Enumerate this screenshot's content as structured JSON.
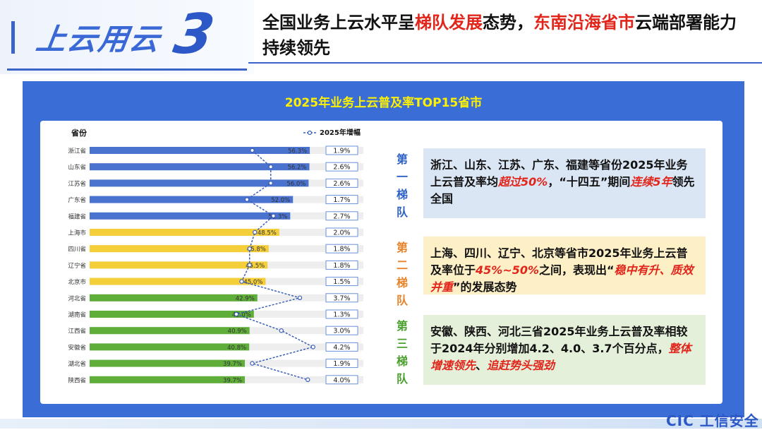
{
  "header": {
    "badge": "上云用云",
    "number": "3",
    "title_parts": [
      "全国业务上云水平呈",
      "梯队发展",
      "态势，",
      "东南沿海省市",
      "云端部署能力持续领先"
    ]
  },
  "panel": {
    "title": "2025年业务上云普及率TOP15省市"
  },
  "colors": {
    "tier1": "#4a72cf",
    "tier2": "#f4cf3a",
    "tier3": "#5fae3a",
    "tier1_label": "#2f62c8",
    "tier2_label": "#e8832a",
    "tier3_label": "#4aa02c",
    "line": "#3a5fb8"
  },
  "chart_data": {
    "type": "bar",
    "ylabel": "省份",
    "legend_label": "2025年增幅",
    "categories": [
      "浙江省",
      "山东省",
      "江苏省",
      "广东省",
      "福建省",
      "上海市",
      "四川省",
      "辽宁省",
      "北京市",
      "河北省",
      "湖南省",
      "江西省",
      "安徽省",
      "湖北省",
      "陕西省"
    ],
    "values": [
      56.3,
      56.2,
      56.0,
      52.0,
      51.3,
      48.5,
      45.8,
      45.5,
      45.0,
      42.9,
      42.0,
      40.9,
      40.8,
      39.7,
      39.7
    ],
    "value_labels": [
      "56.3%",
      "56.2%",
      "56.0%",
      "52.0%",
      "51.3%",
      "48.5%",
      "45.8%",
      "45.5%",
      "45.0%",
      "42.9%",
      "42.0%",
      "40.9%",
      "40.8%",
      "39.7%",
      "39.7%"
    ],
    "growth": [
      1.9,
      2.6,
      2.6,
      1.7,
      2.7,
      2.0,
      1.8,
      1.8,
      1.5,
      3.7,
      1.3,
      3.0,
      4.2,
      1.9,
      4.0
    ],
    "growth_labels": [
      "1.9%",
      "2.6%",
      "2.6%",
      "1.7%",
      "2.7%",
      "2.0%",
      "1.8%",
      "1.8%",
      "1.5%",
      "3.7%",
      "1.3%",
      "3.0%",
      "4.2%",
      "1.9%",
      "4.0%"
    ],
    "tiers": [
      1,
      1,
      1,
      1,
      1,
      2,
      2,
      2,
      2,
      3,
      3,
      3,
      3,
      3,
      3
    ]
  },
  "tiers": [
    {
      "label": "第一梯队",
      "parts": [
        "浙江、山东、江苏、广东、福建等省份2025年业务上云普及率均",
        "超过50%",
        "，“十四五”期间",
        "连续5年",
        "领先全国"
      ]
    },
    {
      "label": "第二梯队",
      "parts": [
        "上海、四川、辽宁、北京等省市2025年业务上云普及率位于",
        "45%~50%",
        "之间，表现出“",
        "稳中有升、质效并重",
        "”的发展态势"
      ]
    },
    {
      "label": "第三梯队",
      "parts": [
        "安徽、陕西、河北三省2025年业务上云普及率相较于2024年分别增加4.2、4.0、3.7个百分点，",
        "整体增速领先",
        "、",
        "追赶势头强劲",
        ""
      ]
    }
  ],
  "footer": {
    "logo": "CIC 工信安全"
  }
}
